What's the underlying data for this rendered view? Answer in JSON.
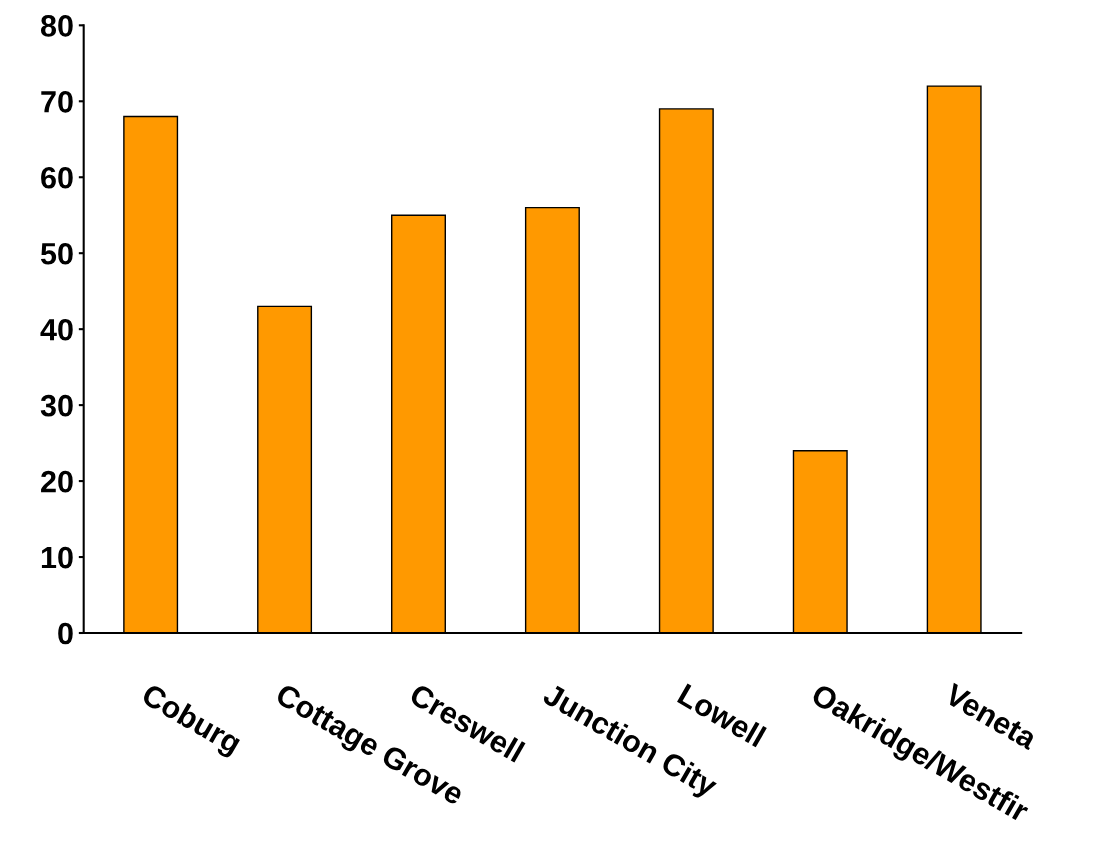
{
  "chart_data": {
    "type": "bar",
    "categories": [
      "Coburg",
      "Cottage Grove",
      "Creswell",
      "Junction City",
      "Lowell",
      "Oakridge/Westfir",
      "Veneta"
    ],
    "values": [
      68,
      43,
      55,
      56,
      69,
      24,
      72
    ],
    "color": "#ff9900",
    "ylim": [
      0,
      80
    ],
    "yticks": [
      0,
      10,
      20,
      30,
      40,
      50,
      60,
      70,
      80
    ],
    "grid": false,
    "legend": false
  }
}
